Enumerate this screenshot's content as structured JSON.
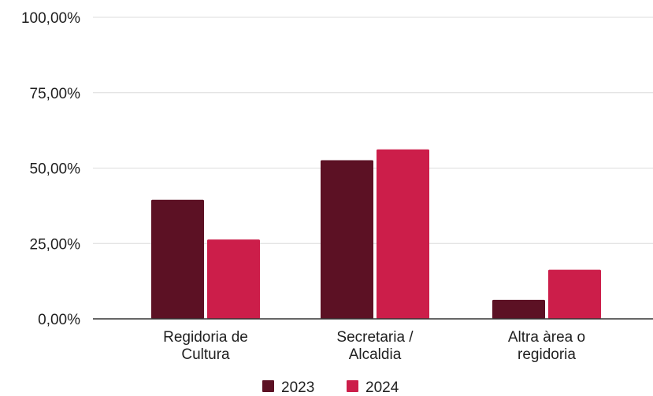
{
  "chart_data": {
    "type": "bar",
    "categories": [
      [
        "Regidoria de",
        "Cultura"
      ],
      [
        "Secretaria /",
        "Alcaldia"
      ],
      [
        "Altra àrea o",
        "regidoria"
      ]
    ],
    "series": [
      {
        "name": "2023",
        "color": "#5c1124",
        "values": [
          39.5,
          52.6,
          6.3
        ]
      },
      {
        "name": "2024",
        "color": "#cc1e4a",
        "values": [
          26.3,
          56.2,
          16.3
        ]
      }
    ],
    "ylim": [
      0,
      100
    ],
    "yticks": [
      "0,00%",
      "25,00%",
      "50,00%",
      "75,00%",
      "100,00%"
    ],
    "ytick_values": [
      0,
      25,
      50,
      75,
      100
    ],
    "grid": true,
    "legend_position": "bottom"
  }
}
